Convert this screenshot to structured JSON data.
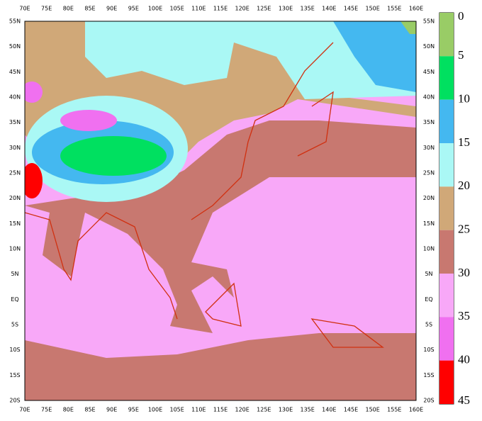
{
  "map": {
    "lon_labels": [
      "70E",
      "75E",
      "80E",
      "85E",
      "90E",
      "95E",
      "100E",
      "105E",
      "110E",
      "115E",
      "120E",
      "125E",
      "130E",
      "135E",
      "140E",
      "145E",
      "150E",
      "155E",
      "160E"
    ],
    "lat_labels": [
      "55N",
      "50N",
      "45N",
      "40N",
      "35N",
      "30N",
      "25N",
      "20N",
      "15N",
      "10N",
      "5N",
      "EQ",
      "5S",
      "10S",
      "15S",
      "20S"
    ]
  },
  "colorbar": {
    "levels": [
      0,
      5,
      10,
      15,
      20,
      25,
      30,
      35,
      40,
      45
    ],
    "colors": [
      "#99cc66",
      "#00e060",
      "#44b8f0",
      "#aaf8f5",
      "#d0a878",
      "#c87870",
      "#f8a8f8",
      "#f070f0",
      "#ff0000"
    ]
  }
}
